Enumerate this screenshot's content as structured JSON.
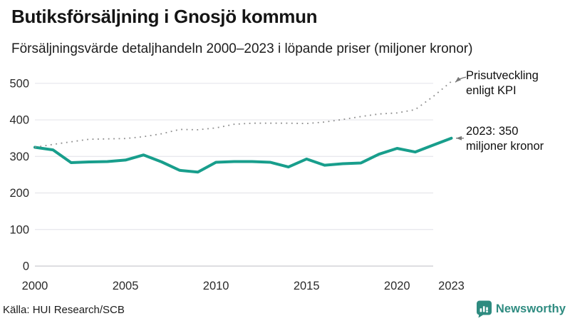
{
  "header": {
    "title": "Butiksförsäljning i Gnosjö kommun",
    "subtitle": "Försäljningsvärde detaljhandeln 2000–2023 i löpande priser (miljoner kronor)"
  },
  "chart_data": {
    "type": "line",
    "x": [
      2000,
      2001,
      2002,
      2003,
      2004,
      2005,
      2006,
      2007,
      2008,
      2009,
      2010,
      2011,
      2012,
      2013,
      2014,
      2015,
      2016,
      2017,
      2018,
      2019,
      2020,
      2021,
      2022,
      2023
    ],
    "series": [
      {
        "name": "Butiksförsäljning (miljoner kronor, löpande priser)",
        "style": "solid",
        "color": "#189e8c",
        "values": [
          325,
          318,
          283,
          285,
          286,
          290,
          304,
          285,
          262,
          257,
          284,
          286,
          286,
          284,
          271,
          293,
          276,
          280,
          282,
          306,
          322,
          312,
          331,
          350
        ]
      },
      {
        "name": "Prisutveckling enligt KPI",
        "style": "dotted",
        "color": "#8d8d8d",
        "values": [
          325,
          333,
          340,
          347,
          348,
          349,
          354,
          362,
          374,
          373,
          378,
          388,
          391,
          391,
          391,
          390,
          394,
          401,
          409,
          416,
          419,
          428,
          464,
          505
        ]
      }
    ],
    "ylim": [
      0,
      500
    ],
    "yticks": [
      0,
      100,
      200,
      300,
      400,
      500
    ],
    "xticks": [
      2000,
      2005,
      2010,
      2015,
      2020,
      2023
    ],
    "grid": "horizontal",
    "legend_position": "annotations-right",
    "tick_color": "#2b2b2b",
    "grid_color": "#e6e6eb",
    "axis_color": "#c9c9cf",
    "arrow_color": "#777777"
  },
  "annotations": {
    "kpi": "Prisutveckling\nenligt KPI",
    "value_2023": "2023: 350\nmiljoner kronor"
  },
  "footer": {
    "source": "Källa: HUI Research/SCB",
    "brand": "Newsworthy",
    "brand_color": "#2e8b80"
  }
}
